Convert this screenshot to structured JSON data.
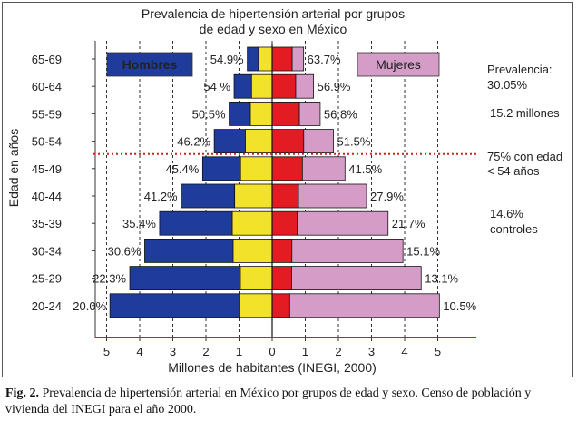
{
  "chart_data": {
    "type": "bar",
    "subtype": "population-pyramid",
    "title_line1": "Prevalencia de hipertensión arterial por grupos",
    "title_line2": "de edad y sexo en México",
    "xlabel": "Millones de habitantes (INEGI, 2000)",
    "ylabel": "Edad en años",
    "xlim": [
      -5,
      5
    ],
    "xticks": [
      "5",
      "4",
      "3",
      "2",
      "1",
      "0",
      "1",
      "2",
      "3",
      "4",
      "5"
    ],
    "categories": [
      "65-69",
      "60-64",
      "55-59",
      "50-54",
      "45-49",
      "40-44",
      "35-39",
      "30-34",
      "25-29",
      "20-24"
    ],
    "series": [
      {
        "name": "Hombres",
        "side": "left",
        "population": [
          0.75,
          1.15,
          1.3,
          1.75,
          2.1,
          2.75,
          3.4,
          3.85,
          4.3,
          4.9
        ],
        "prevalence_labels": [
          "54.9%",
          "54 %",
          "50.5%",
          "46.2%",
          "45.4%",
          "41.2%",
          "35.4%",
          "30.6%",
          "22.3%",
          "20.0%"
        ]
      },
      {
        "name": "Mujeres",
        "side": "right",
        "population": [
          0.95,
          1.25,
          1.45,
          1.85,
          2.2,
          2.85,
          3.5,
          3.95,
          4.5,
          5.05
        ],
        "prevalence_labels": [
          "63.7%",
          "56.9%",
          "56.8%",
          "51.5%",
          "41.5%",
          "27.9%",
          "21.7%",
          "15.1%",
          "13.1%",
          "10.5%"
        ]
      }
    ],
    "legend": [
      {
        "label": "Hombres",
        "color": "#1f3b9c",
        "text_color": "#ffffff"
      },
      {
        "label": "Mujeres",
        "color": "#d59cc8",
        "text_color": "#333333"
      }
    ],
    "colors": {
      "hombres": "#1f3b9c",
      "hombres_hypertension": "#f2e22a",
      "mujeres": "#d59cc8",
      "mujeres_hypertension": "#e31c23",
      "threshold_line": "#d01f1f"
    },
    "threshold_between": [
      "50-54",
      "45-49"
    ],
    "annotations": [
      "Prevalencia:",
      "30.05%",
      "15.2 millones",
      "75% con edad",
      "< 54 años",
      "14.6%",
      "controles"
    ]
  },
  "caption": {
    "label": "Fig. 2.",
    "text": " Prevalencia de hipertensión arterial en México por grupos de edad y sexo. Censo de población y vivienda del INEGI para el año 2000."
  }
}
